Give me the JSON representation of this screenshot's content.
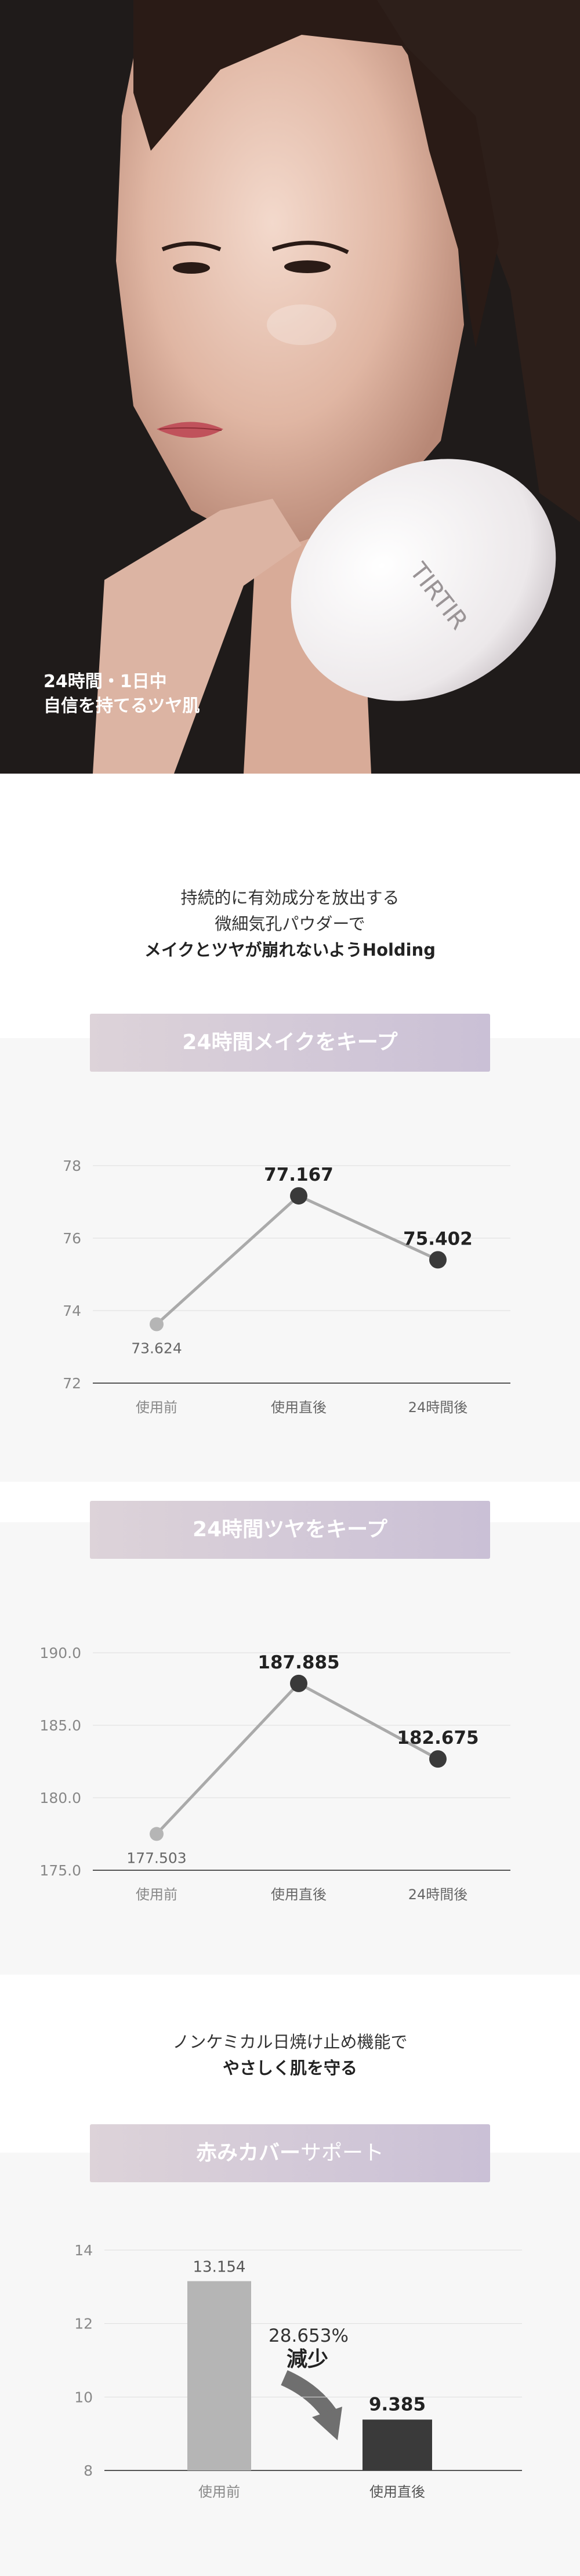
{
  "hero": {
    "caption_line1": "24時間・1日中",
    "caption_line2": "自信を持てるツヤ肌",
    "product_logo": "TIRTIR"
  },
  "intro": {
    "line1": "持続的に有効成分を放出する",
    "line2": "微細気孔パウダーで",
    "line3": "メイクとツヤが崩れないようHolding"
  },
  "section_makeup": {
    "banner": "24時間メイクをキープ"
  },
  "section_gloss": {
    "banner": "24時間ツヤをキープ"
  },
  "uv": {
    "line1": "ノンケミカル日焼け止め機能で",
    "line2": "やさしく肌を守る"
  },
  "section_redness": {
    "banner_bold": "赤みカバー",
    "banner_light": "サポート",
    "reduction_value": "28.653%",
    "reduction_label": "減少"
  },
  "colors": {
    "accent_dark": "#3a3a3a",
    "accent_light": "#b5b5b5",
    "banner_start": "#ddd3d9",
    "banner_end": "#cac0d6"
  },
  "chart_data": [
    {
      "type": "line",
      "title": "24時間メイクをキープ",
      "categories": [
        "使用前",
        "使用直後",
        "24時間後"
      ],
      "values": [
        73.624,
        77.167,
        75.402
      ],
      "value_labels": [
        "73.624",
        "77.167",
        "75.402"
      ],
      "ylim": [
        72,
        78
      ],
      "yticks": [
        "72",
        "74",
        "76",
        "78"
      ],
      "grid": true
    },
    {
      "type": "line",
      "title": "24時間ツヤをキープ",
      "categories": [
        "使用前",
        "使用直後",
        "24時間後"
      ],
      "values": [
        177.503,
        187.885,
        182.675
      ],
      "value_labels": [
        "177.503",
        "187.885",
        "182.675"
      ],
      "ylim": [
        175,
        190
      ],
      "yticks": [
        "175.0",
        "180.0",
        "185.0",
        "190.0"
      ],
      "grid": true
    },
    {
      "type": "bar",
      "title": "赤みカバーサポート",
      "categories": [
        "使用前",
        "使用直後"
      ],
      "values": [
        13.154,
        9.385
      ],
      "value_labels": [
        "13.154",
        "9.385"
      ],
      "ylim": [
        8,
        14
      ],
      "yticks": [
        "8",
        "10",
        "12",
        "14"
      ],
      "grid": true
    }
  ]
}
